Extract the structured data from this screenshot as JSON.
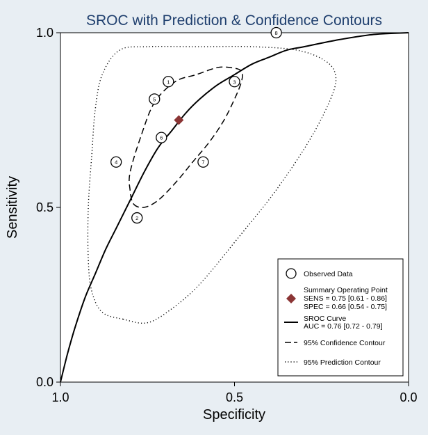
{
  "chart_data": {
    "type": "scatter",
    "title": "SROC with Prediction & Confidence Contours",
    "xlabel": "Specificity",
    "ylabel": "Sensitivity",
    "xlim": [
      1.0,
      0.0
    ],
    "ylim": [
      0.0,
      1.0
    ],
    "x_ticks": [
      {
        "value": 1.0,
        "label": "1.0"
      },
      {
        "value": 0.5,
        "label": "0.5"
      },
      {
        "value": 0.0,
        "label": "0.0"
      }
    ],
    "y_ticks": [
      {
        "value": 0.0,
        "label": "0.0"
      },
      {
        "value": 0.5,
        "label": "0.5"
      },
      {
        "value": 1.0,
        "label": "1.0"
      }
    ],
    "grid": false,
    "legend_position": "bottom-right",
    "observed": [
      {
        "label": "1",
        "spec": 0.69,
        "sens": 0.86
      },
      {
        "label": "2",
        "spec": 0.78,
        "sens": 0.47
      },
      {
        "label": "3",
        "spec": 0.5,
        "sens": 0.86
      },
      {
        "label": "4",
        "spec": 0.84,
        "sens": 0.63
      },
      {
        "label": "5",
        "spec": 0.73,
        "sens": 0.81
      },
      {
        "label": "6",
        "spec": 0.71,
        "sens": 0.7
      },
      {
        "label": "7",
        "spec": 0.59,
        "sens": 0.63
      },
      {
        "label": "8",
        "spec": 0.38,
        "sens": 1.0
      }
    ],
    "summary_point": {
      "spec": 0.66,
      "sens": 0.75,
      "color": "#8b3535"
    },
    "sroc_curve": {
      "points": [
        [
          1.0,
          0.0
        ],
        [
          0.98,
          0.08
        ],
        [
          0.96,
          0.15
        ],
        [
          0.93,
          0.24
        ],
        [
          0.9,
          0.31
        ],
        [
          0.87,
          0.38
        ],
        [
          0.84,
          0.44
        ],
        [
          0.8,
          0.52
        ],
        [
          0.76,
          0.6
        ],
        [
          0.72,
          0.67
        ],
        [
          0.68,
          0.72
        ],
        [
          0.64,
          0.77
        ],
        [
          0.6,
          0.81
        ],
        [
          0.55,
          0.85
        ],
        [
          0.5,
          0.88
        ],
        [
          0.45,
          0.91
        ],
        [
          0.4,
          0.93
        ],
        [
          0.35,
          0.95
        ],
        [
          0.3,
          0.96
        ],
        [
          0.2,
          0.98
        ],
        [
          0.1,
          0.995
        ],
        [
          0.0,
          1.0
        ]
      ]
    },
    "confidence_contour": {
      "points": [
        [
          0.79,
          0.51
        ],
        [
          0.76,
          0.5
        ],
        [
          0.72,
          0.52
        ],
        [
          0.67,
          0.57
        ],
        [
          0.62,
          0.63
        ],
        [
          0.57,
          0.69
        ],
        [
          0.53,
          0.75
        ],
        [
          0.5,
          0.81
        ],
        [
          0.48,
          0.86
        ],
        [
          0.48,
          0.89
        ],
        [
          0.51,
          0.9
        ],
        [
          0.55,
          0.9
        ],
        [
          0.61,
          0.88
        ],
        [
          0.67,
          0.86
        ],
        [
          0.73,
          0.8
        ],
        [
          0.77,
          0.7
        ],
        [
          0.8,
          0.6
        ],
        [
          0.8,
          0.55
        ]
      ]
    },
    "prediction_contour": {
      "points": [
        [
          0.82,
          0.18
        ],
        [
          0.88,
          0.2
        ],
        [
          0.91,
          0.26
        ],
        [
          0.92,
          0.35
        ],
        [
          0.92,
          0.5
        ],
        [
          0.91,
          0.65
        ],
        [
          0.9,
          0.78
        ],
        [
          0.88,
          0.88
        ],
        [
          0.83,
          0.95
        ],
        [
          0.75,
          0.96
        ],
        [
          0.6,
          0.96
        ],
        [
          0.45,
          0.96
        ],
        [
          0.32,
          0.95
        ],
        [
          0.24,
          0.92
        ],
        [
          0.21,
          0.88
        ],
        [
          0.22,
          0.82
        ],
        [
          0.28,
          0.7
        ],
        [
          0.38,
          0.55
        ],
        [
          0.5,
          0.4
        ],
        [
          0.6,
          0.28
        ],
        [
          0.68,
          0.21
        ],
        [
          0.75,
          0.17
        ]
      ]
    },
    "legend": {
      "observed": "Observed Data",
      "summary_line1": "Summary Operating Point",
      "summary_line2": "SENS = 0.75 [0.61 - 0.86]",
      "summary_line3": "SPEC = 0.66 [0.54 - 0.75]",
      "sroc_line1": "SROC Curve",
      "sroc_line2": "AUC = 0.76 [0.72 - 0.79]",
      "confidence": "95% Confidence Contour",
      "prediction": "95% Prediction Contour"
    },
    "colors": {
      "background": "#e8eef3",
      "title": "#1f3f6e",
      "plot_area": "#ffffff",
      "ink": "#000000",
      "summary": "#8b3535"
    }
  }
}
